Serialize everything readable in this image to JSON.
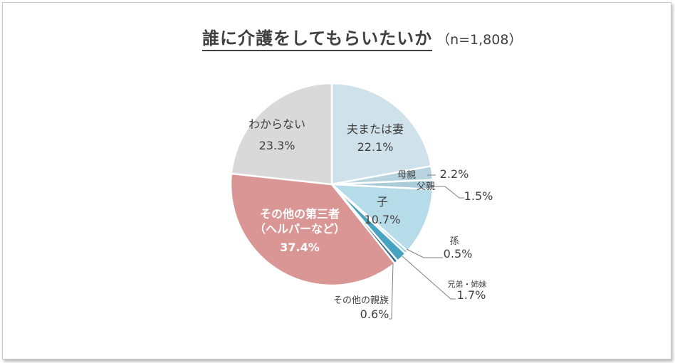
{
  "title": "誰に介護をしてもらいたいか",
  "subtitle": "（n=1,808）",
  "chart_data": {
    "type": "pie",
    "title": "誰に介護をしてもらいたいか",
    "subtitle": "（n=1,808）",
    "start_angle_deg": 0,
    "direction": "clockwise",
    "slices": [
      {
        "label": "夫または妻",
        "value": 22.1,
        "value_label": "22.1%",
        "color": "#cfe1ea",
        "label_color": "#404040"
      },
      {
        "label": "母親",
        "value": 2.2,
        "value_label": "2.2%",
        "color": "#b8d3e0",
        "label_color": "#404040"
      },
      {
        "label": "父親",
        "value": 1.5,
        "value_label": "1.5%",
        "color": "#a9cbda",
        "label_color": "#404040"
      },
      {
        "label": "子",
        "value": 10.7,
        "value_label": "10.7%",
        "color": "#b7dce9",
        "label_color": "#404040"
      },
      {
        "label": "孫",
        "value": 0.5,
        "value_label": "0.5%",
        "color": "#7fc3da",
        "label_color": "#404040"
      },
      {
        "label": "兄弟・姉妹",
        "value": 1.7,
        "value_label": "1.7%",
        "color": "#48a3c2",
        "label_color": "#404040"
      },
      {
        "label": "その他の親族",
        "value": 0.6,
        "value_label": "0.6%",
        "color": "#2b6f8a",
        "label_color": "#404040"
      },
      {
        "label": "その他の第三者",
        "label2": "（ヘルパーなど）",
        "value": 37.4,
        "value_label": "37.4%",
        "color": "#d99694",
        "label_color": "#ffffff"
      },
      {
        "label": "わからない",
        "value": 23.3,
        "value_label": "23.3%",
        "color": "#d9d9d9",
        "label_color": "#404040"
      }
    ]
  }
}
